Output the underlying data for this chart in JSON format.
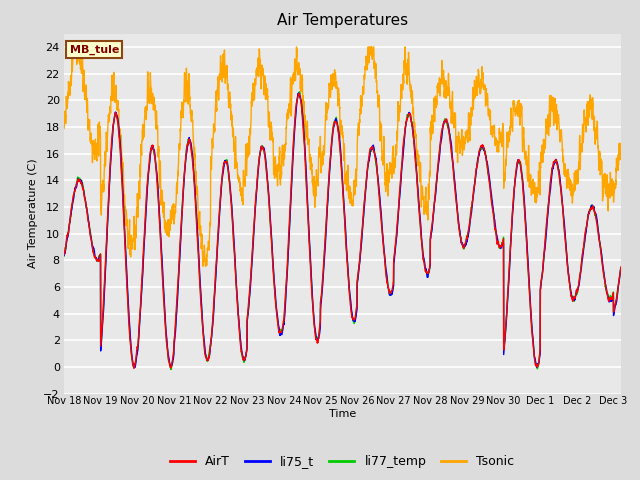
{
  "title": "Air Temperatures",
  "ylabel": "Air Temperature (C)",
  "xlabel": "Time",
  "annotation_label": "MB_tule",
  "colors": {
    "AirT": "#FF0000",
    "li75_t": "#0000FF",
    "li77_temp": "#00CC00",
    "Tsonic": "#FFA500"
  },
  "ylim": [
    -2,
    25
  ],
  "yticks": [
    -2,
    0,
    2,
    4,
    6,
    8,
    10,
    12,
    14,
    16,
    18,
    20,
    22,
    24
  ],
  "bg_color": "#DCDCDC",
  "plot_bg_color": "#E8E8E8",
  "grid_color": "#FFFFFF",
  "linewidth": 1.0,
  "n_points": 3600,
  "tick_labels": [
    "Nov 18",
    "Nov 19",
    "Nov 20",
    "Nov 21",
    "Nov 22",
    "Nov 23",
    "Nov 24",
    "Nov 25",
    "Nov 26",
    "Nov 27",
    "Nov 28",
    "Nov 29",
    "Nov 30",
    "Dec 1",
    "Dec 2",
    "Dec 3"
  ],
  "n_days": 15.2,
  "day_peaks_air": [
    14.0,
    19.0,
    16.5,
    17.0,
    15.5,
    16.5,
    20.5,
    18.5,
    16.5,
    19.0,
    18.5,
    16.5,
    15.5,
    15.5,
    12.0,
    10.0
  ],
  "day_mins_air": [
    8.0,
    0.0,
    0.0,
    0.5,
    0.5,
    2.5,
    2.0,
    3.5,
    5.5,
    7.0,
    9.0,
    9.0,
    0.0,
    5.0,
    5.0,
    3.5
  ],
  "day_peaks_tsonic": [
    24.0,
    20.7,
    20.8,
    21.0,
    22.5,
    22.5,
    22.5,
    21.8,
    23.9,
    22.5,
    21.2,
    21.5,
    19.5,
    19.5,
    19.5,
    16.5
  ],
  "day_mins_tsonic": [
    16.0,
    9.0,
    10.0,
    8.0,
    13.5,
    14.5,
    14.0,
    12.5,
    14.0,
    12.5,
    16.5,
    16.5,
    13.0,
    13.5,
    13.0,
    13.0
  ]
}
